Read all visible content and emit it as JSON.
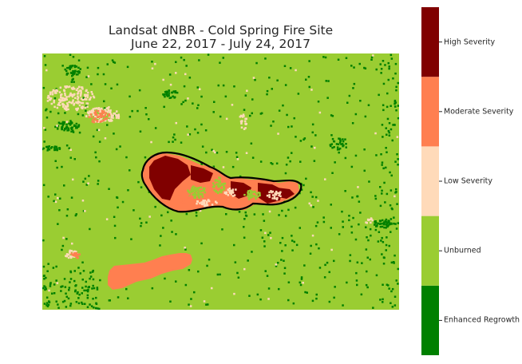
{
  "chart_data": {
    "type": "heatmap",
    "title": "Landsat dNBR - Cold Spring Fire Site",
    "subtitle": "June 22, 2017 - July 24, 2017",
    "colorbar": {
      "classes": [
        {
          "label": "Enhanced Regrowth",
          "color": "#008000"
        },
        {
          "label": "Unburned",
          "color": "#9acd32"
        },
        {
          "label": "Low Severity",
          "color": "#ffdab9"
        },
        {
          "label": "Moderate Severity",
          "color": "#ff7f50"
        },
        {
          "label": "High Severity",
          "color": "#800000"
        }
      ]
    },
    "background_class": "Unburned",
    "fire_boundary": true
  }
}
